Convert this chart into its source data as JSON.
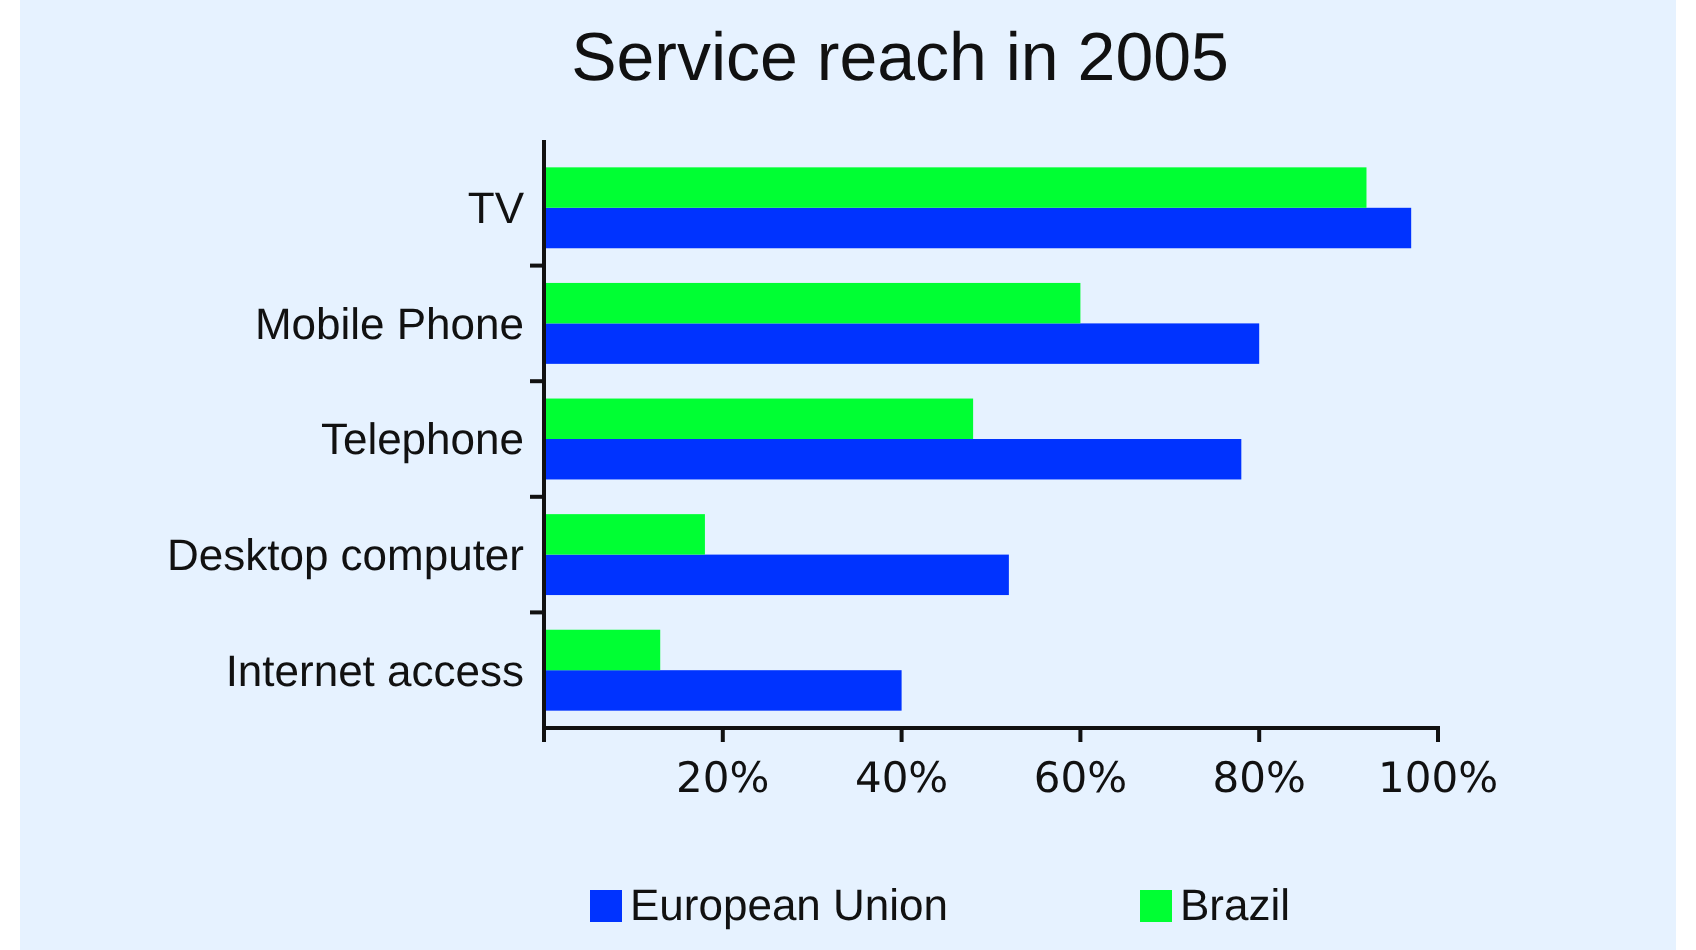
{
  "chart_data": {
    "type": "bar",
    "title": "Service reach in 2005",
    "orientation": "horizontal",
    "categories": [
      "TV",
      "Mobile Phone",
      "Telephone",
      "Desktop computer",
      "Internet access"
    ],
    "series": [
      {
        "name": "European Union",
        "color": "#0033ff",
        "values": [
          97,
          80,
          78,
          52,
          40
        ]
      },
      {
        "name": "Brazil",
        "color": "#00ff33",
        "values": [
          92,
          60,
          48,
          18,
          13
        ]
      }
    ],
    "xlim": [
      0,
      100
    ],
    "xticks": [
      {
        "value": 20,
        "label": "20%"
      },
      {
        "value": 40,
        "label": "40%"
      },
      {
        "value": 60,
        "label": "60%"
      },
      {
        "value": 80,
        "label": "80%"
      },
      {
        "value": 100,
        "label": "100%"
      }
    ],
    "grid": false,
    "legend": "bottom"
  }
}
